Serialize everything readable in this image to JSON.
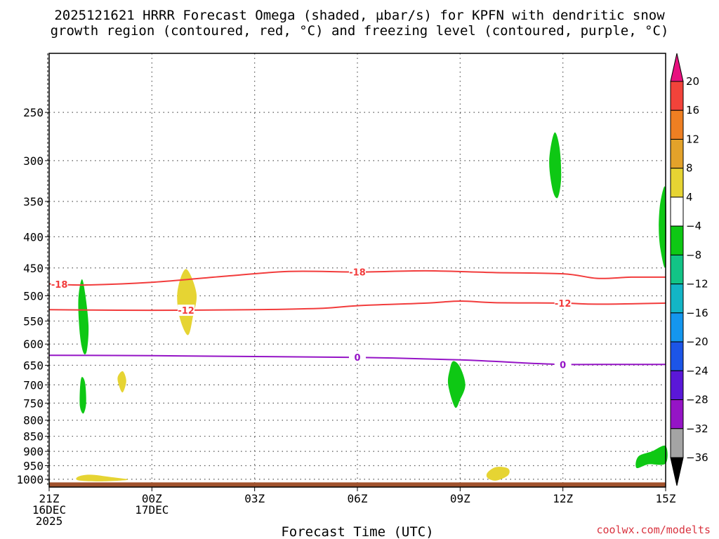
{
  "title": {
    "line1": "2025121621 HRRR Forecast Omega (shaded, µbar/s) for KPFN with dendritic snow",
    "line2": "growth region (contoured, red, °C) and freezing level (contoured, purple, °C)"
  },
  "credit": "coolwx.com/modelts",
  "chart_data": {
    "type": "heatmap",
    "title": "2025121621 HRRR Forecast Omega (shaded, µbar/s) for KPFN with dendritic snow growth region (contoured, red, °C) and freezing level (contoured, purple, °C)",
    "xlabel": "Forecast Time (UTC)",
    "ylabel": "",
    "x_range_hours": [
      0,
      18
    ],
    "y_scale": "log-pressure",
    "y_range_mb": [
      200,
      1030
    ],
    "grid": true,
    "x_ticks": [
      {
        "hour": 0,
        "lines": [
          "21Z",
          "16DEC",
          "2025"
        ]
      },
      {
        "hour": 3,
        "lines": [
          "00Z",
          "17DEC"
        ]
      },
      {
        "hour": 6,
        "lines": [
          "03Z"
        ]
      },
      {
        "hour": 9,
        "lines": [
          "06Z"
        ]
      },
      {
        "hour": 12,
        "lines": [
          "09Z"
        ]
      },
      {
        "hour": 15,
        "lines": [
          "12Z"
        ]
      },
      {
        "hour": 18,
        "lines": [
          "15Z"
        ]
      }
    ],
    "y_ticks": [
      250,
      300,
      350,
      400,
      450,
      500,
      550,
      600,
      650,
      700,
      750,
      800,
      850,
      900,
      950,
      1000
    ],
    "colorbar": {
      "levels": [
        -36,
        -32,
        -28,
        -24,
        -20,
        -16,
        -12,
        -8,
        -4,
        4,
        8,
        12,
        16,
        20
      ],
      "labels": [
        "20",
        "16",
        "12",
        "8",
        "4",
        "−4",
        "−8",
        "−12",
        "−16",
        "−20",
        "−24",
        "−28",
        "−32",
        "−36"
      ],
      "bands_top_to_bottom": [
        {
          "range": ">20",
          "color": "#e8117f"
        },
        {
          "range": "16 to 20",
          "color": "#f2433a"
        },
        {
          "range": "12 to 16",
          "color": "#ee7f22"
        },
        {
          "range": "8 to 12",
          "color": "#e3a22a"
        },
        {
          "range": "4 to 8",
          "color": "#e6d433"
        },
        {
          "range": "-4 to 4",
          "color": "#ffffff"
        },
        {
          "range": "-8 to -4",
          "color": "#0ec814"
        },
        {
          "range": "-12 to -8",
          "color": "#12c486"
        },
        {
          "range": "-16 to -12",
          "color": "#13b5c6"
        },
        {
          "range": "-20 to -16",
          "color": "#1496ee"
        },
        {
          "range": "-24 to -20",
          "color": "#1c55e7"
        },
        {
          "range": "-28 to -24",
          "color": "#5a17d8"
        },
        {
          "range": "-32 to -28",
          "color": "#9514c6"
        },
        {
          "range": "-36 to -32",
          "color": "#a4a4a4"
        },
        {
          "range": "<-36",
          "color": "#000000"
        }
      ]
    },
    "contours": [
      {
        "label": "-18",
        "color": "#f23c3c",
        "label_at_hours": [
          0.3,
          9.0
        ],
        "points": [
          [
            0,
            478
          ],
          [
            1,
            480
          ],
          [
            3,
            475
          ],
          [
            5,
            465
          ],
          [
            7,
            456
          ],
          [
            9,
            457
          ],
          [
            11,
            455
          ],
          [
            13,
            458
          ],
          [
            15,
            460
          ],
          [
            16,
            468
          ],
          [
            17,
            466
          ],
          [
            18,
            466
          ]
        ]
      },
      {
        "label": "-12",
        "color": "#f23c3c",
        "label_at_hours": [
          4.0,
          15.0
        ],
        "points": [
          [
            0,
            527
          ],
          [
            2,
            528
          ],
          [
            4,
            528
          ],
          [
            6,
            527
          ],
          [
            8,
            524
          ],
          [
            9,
            519
          ],
          [
            11,
            514
          ],
          [
            12,
            510
          ],
          [
            13,
            513
          ],
          [
            15,
            514
          ],
          [
            16,
            516
          ],
          [
            18,
            514
          ]
        ]
      },
      {
        "label": "0",
        "color": "#9514c6",
        "label_at_hours": [
          9.0,
          15.0
        ],
        "points": [
          [
            0,
            626
          ],
          [
            3,
            627
          ],
          [
            6,
            629
          ],
          [
            9,
            631
          ],
          [
            12,
            637
          ],
          [
            14,
            645
          ],
          [
            15,
            648
          ],
          [
            16,
            648
          ],
          [
            18,
            648
          ]
        ]
      }
    ],
    "omega_features": [
      {
        "id": "green-400mb-22z",
        "value_range": "-8 to -4",
        "color": "#0ec814",
        "points": [
          [
            0.95,
            470
          ],
          [
            1.05,
            495
          ],
          [
            1.15,
            560
          ],
          [
            1.1,
            615
          ],
          [
            1.0,
            620
          ],
          [
            0.9,
            580
          ],
          [
            0.85,
            510
          ]
        ]
      },
      {
        "id": "green-720mb-22z",
        "value_range": "-8 to -4",
        "color": "#0ec814",
        "points": [
          [
            0.95,
            680
          ],
          [
            1.05,
            695
          ],
          [
            1.08,
            750
          ],
          [
            1.0,
            780
          ],
          [
            0.9,
            760
          ],
          [
            0.9,
            710
          ]
        ]
      },
      {
        "id": "yellow-510mb-01z",
        "value_range": "4 to 8",
        "color": "#e6d433",
        "points": [
          [
            4.0,
            452
          ],
          [
            4.3,
            495
          ],
          [
            4.2,
            540
          ],
          [
            4.05,
            580
          ],
          [
            3.8,
            540
          ],
          [
            3.75,
            490
          ]
        ]
      },
      {
        "id": "yellow-690mb-00z",
        "value_range": "4 to 8",
        "color": "#e6d433",
        "points": [
          [
            2.15,
            665
          ],
          [
            2.25,
            690
          ],
          [
            2.15,
            720
          ],
          [
            2.05,
            705
          ],
          [
            2.0,
            680
          ]
        ]
      },
      {
        "id": "yellow-990mb-22z",
        "value_range": "4 to 8",
        "color": "#e6d433",
        "points": [
          [
            0.85,
            990
          ],
          [
            1.2,
            983
          ],
          [
            1.8,
            992
          ],
          [
            2.3,
            1002
          ],
          [
            1.5,
            1008
          ],
          [
            0.85,
            1004
          ]
        ]
      },
      {
        "id": "green-690mb-08z",
        "value_range": "-8 to -4",
        "color": "#0ec814",
        "points": [
          [
            11.8,
            640
          ],
          [
            12.0,
            655
          ],
          [
            12.15,
            700
          ],
          [
            12.0,
            740
          ],
          [
            11.85,
            762
          ],
          [
            11.65,
            700
          ],
          [
            11.7,
            660
          ]
        ]
      },
      {
        "id": "yellow-975mb-09z",
        "value_range": "4 to 8",
        "color": "#e6d433",
        "points": [
          [
            12.8,
            975
          ],
          [
            13.05,
            955
          ],
          [
            13.4,
            960
          ],
          [
            13.4,
            985
          ],
          [
            13.05,
            1005
          ],
          [
            12.8,
            995
          ]
        ]
      },
      {
        "id": "green-300mb-11z",
        "value_range": "-8 to -4",
        "color": "#0ec814",
        "points": [
          [
            14.75,
            270
          ],
          [
            14.9,
            285
          ],
          [
            14.95,
            320
          ],
          [
            14.85,
            345
          ],
          [
            14.7,
            335
          ],
          [
            14.6,
            300
          ]
        ]
      },
      {
        "id": "green-390mb-15z",
        "value_range": "-8 to -4",
        "color": "#0ec814",
        "points": [
          [
            18.0,
            335
          ],
          [
            17.85,
            350
          ],
          [
            17.8,
            385
          ],
          [
            17.85,
            420
          ],
          [
            18.0,
            445
          ]
        ]
      },
      {
        "id": "green-920mb-15z",
        "value_range": "-8 to -4",
        "color": "#0ec814",
        "points": [
          [
            17.2,
            918
          ],
          [
            17.6,
            900
          ],
          [
            18.0,
            882
          ],
          [
            18.0,
            942
          ],
          [
            17.5,
            945
          ],
          [
            17.15,
            958
          ]
        ]
      }
    ],
    "ground": {
      "color": "#a0522d",
      "top_mb": 1012
    }
  }
}
